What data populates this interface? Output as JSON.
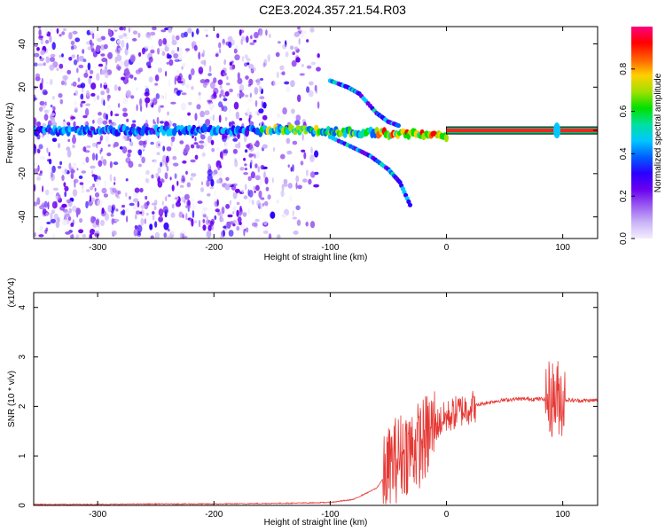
{
  "title": "C2E3.2024.357.21.54.R03",
  "colors": {
    "snr_line": "#e53935",
    "axes": "#000000",
    "colormap": [
      "#f3eefe",
      "#c9b3f6",
      "#9a5cf0",
      "#6a00f0",
      "#2a00ff",
      "#0060ff",
      "#00c8ff",
      "#00e0a0",
      "#00e000",
      "#a0e000",
      "#ffd000",
      "#ff6000",
      "#ff0000",
      "#ff0080"
    ]
  },
  "chart_data": [
    {
      "type": "heatmap",
      "xlabel": "Height of straight line (km)",
      "ylabel": "Frequency (Hz)",
      "xlim": [
        -355,
        130
      ],
      "ylim": [
        -50,
        48
      ],
      "xticks": [
        -300,
        -200,
        -100,
        0,
        100
      ],
      "yticks": [
        -40,
        -20,
        0,
        20,
        40
      ],
      "xtick_labels": [
        "-300",
        "-200",
        "-100",
        "0",
        "100"
      ],
      "ytick_labels": [
        "-40",
        "-20",
        "0",
        "20",
        "40"
      ],
      "colorbar": {
        "label": "Normalized spectral amplitude",
        "range": [
          0,
          1
        ],
        "ticks": [
          0.0,
          0.2,
          0.4,
          0.6,
          0.8
        ],
        "tick_labels": [
          "0.0",
          "0.2",
          "0.4",
          "0.6",
          "0.8"
        ]
      },
      "features": {
        "carrier_line": {
          "freq": 0,
          "x_start": 0,
          "x_end": 130
        },
        "main_band": {
          "freq": 0,
          "x_start": -355,
          "x_end": 0
        },
        "upper_branch": [
          [
            -100,
            23
          ],
          [
            -85,
            20
          ],
          [
            -75,
            17
          ],
          [
            -60,
            8
          ],
          [
            -50,
            4
          ],
          [
            -40,
            2
          ]
        ],
        "lower_branch": [
          [
            -100,
            -3
          ],
          [
            -80,
            -8
          ],
          [
            -65,
            -12
          ],
          [
            -50,
            -18
          ],
          [
            -40,
            -24
          ],
          [
            -30,
            -36
          ]
        ],
        "noise_region": {
          "x_start": -355,
          "x_end": -110
        }
      }
    },
    {
      "type": "line",
      "xlabel": "Height of straight line (km)",
      "ylabel": "SNR (10 * v/v)",
      "y_scale_note": "(x10^4)",
      "xlim": [
        -355,
        130
      ],
      "ylim": [
        0,
        4.3
      ],
      "xticks": [
        -300,
        -200,
        -100,
        0,
        100
      ],
      "yticks": [
        0,
        1,
        2,
        3,
        4
      ],
      "xtick_labels": [
        "-300",
        "-200",
        "-100",
        "0",
        "100"
      ],
      "ytick_labels": [
        "0",
        "1",
        "2",
        "3",
        "4"
      ],
      "series": [
        {
          "x": [
            -355,
            -300,
            -250,
            -200,
            -150,
            -120,
            -100,
            -80,
            -60,
            -50,
            -45,
            -40,
            -35,
            -30,
            -25,
            -20,
            -15,
            -10,
            -5,
            0,
            10,
            20,
            30,
            40,
            50,
            60,
            70,
            80,
            90,
            95,
            98,
            100,
            105,
            110,
            130
          ],
          "y": [
            0.02,
            0.02,
            0.03,
            0.03,
            0.04,
            0.05,
            0.06,
            0.12,
            0.35,
            0.7,
            0.9,
            1.0,
            1.1,
            1.15,
            1.2,
            1.3,
            1.45,
            1.6,
            1.7,
            1.78,
            1.9,
            1.98,
            2.05,
            2.1,
            2.13,
            2.15,
            2.15,
            2.15,
            2.15,
            2.18,
            2.2,
            2.14,
            2.13,
            2.12,
            2.12
          ]
        }
      ]
    }
  ]
}
